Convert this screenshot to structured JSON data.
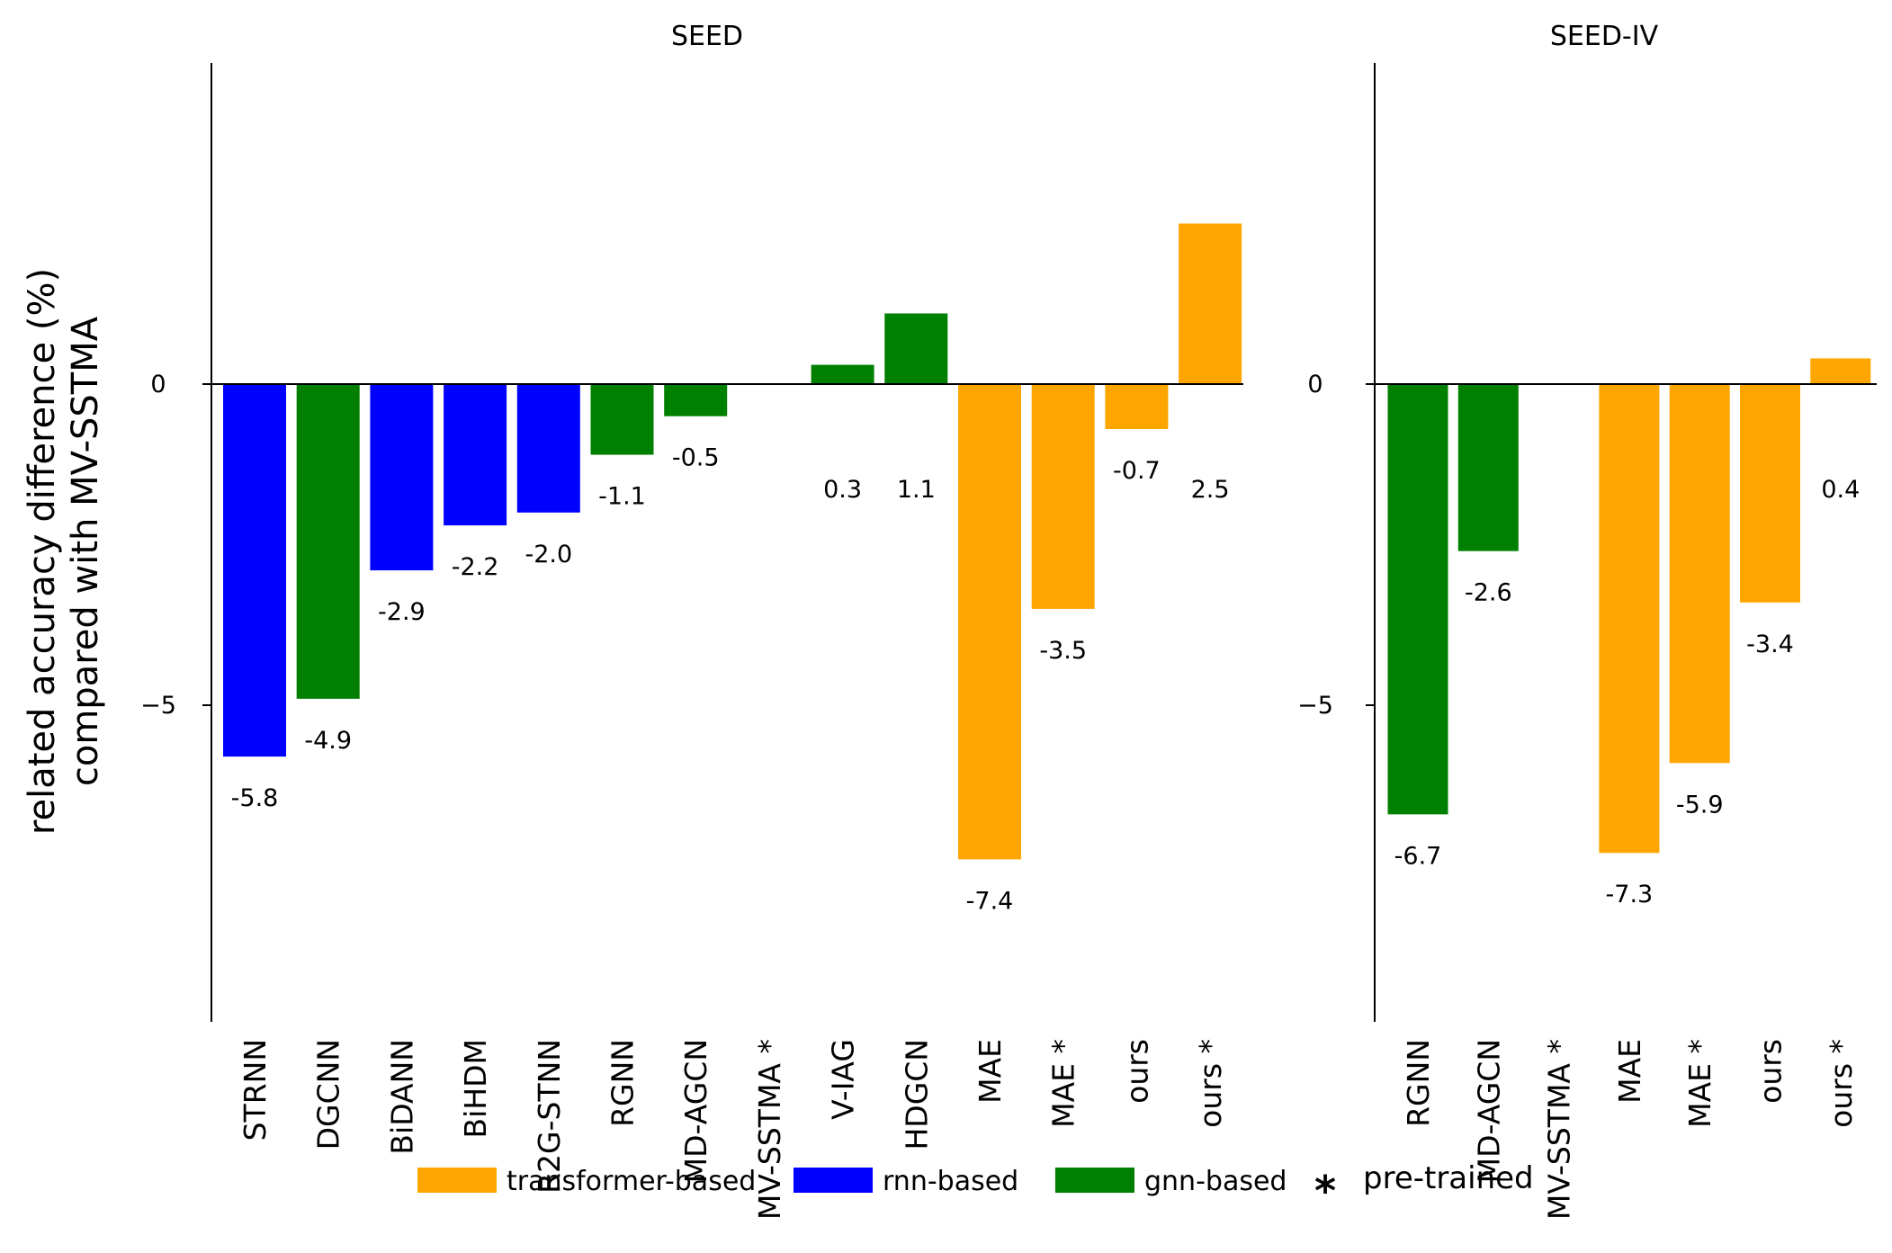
{
  "chart_data": {
    "type": "bar",
    "ylabel": [
      "related accuracy difference (%)",
      "compared with MV-SSTMA"
    ],
    "yticks": [
      0,
      -5
    ],
    "ylim": [
      -10,
      5
    ],
    "colors": {
      "transformer-based": "#FFA500",
      "rnn-based": "#0000FF",
      "gnn-based": "#008000"
    },
    "legend": {
      "placement": "bottom",
      "entries": [
        {
          "label": "transformer-based",
          "group": "transformer-based"
        },
        {
          "label": "rnn-based",
          "group": "rnn-based"
        },
        {
          "label": "gnn-based",
          "group": "gnn-based"
        }
      ],
      "star_symbol": "*",
      "star_label": "pre-trained"
    },
    "panels": [
      {
        "title": "SEED",
        "categories": [
          "STRNN",
          "DGCNN",
          "BiDANN",
          "BiHDM",
          "R2G-STNN",
          "RGNN",
          "MD-AGCN",
          "MV-SSTMA *",
          "V-IAG",
          "HDGCN",
          "MAE",
          "MAE *",
          "ours",
          "ours *"
        ],
        "values": [
          -5.8,
          -4.9,
          -2.9,
          -2.2,
          -2.0,
          -1.1,
          -0.5,
          0,
          0.3,
          1.1,
          -7.4,
          -3.5,
          -0.7,
          2.5
        ],
        "value_labels": [
          "-5.8",
          "-4.9",
          "-2.9",
          "-2.2",
          "-2.0",
          "-1.1",
          "-0.5",
          "",
          "0.3",
          "1.1",
          "-7.4",
          "-3.5",
          "-0.7",
          "2.5"
        ],
        "groups": [
          "rnn-based",
          "gnn-based",
          "rnn-based",
          "rnn-based",
          "rnn-based",
          "gnn-based",
          "gnn-based",
          "transformer-based",
          "gnn-based",
          "gnn-based",
          "transformer-based",
          "transformer-based",
          "transformer-based",
          "transformer-based"
        ]
      },
      {
        "title": "SEED-IV",
        "categories": [
          "RGNN",
          "MD-AGCN",
          "MV-SSTMA *",
          "MAE",
          "MAE *",
          "ours",
          "ours *"
        ],
        "values": [
          -6.7,
          -2.6,
          0,
          -7.3,
          -5.9,
          -3.4,
          0.4
        ],
        "value_labels": [
          "-6.7",
          "-2.6",
          "",
          "-7.3",
          "-5.9",
          "-3.4",
          "0.4"
        ],
        "groups": [
          "gnn-based",
          "gnn-based",
          "transformer-based",
          "transformer-based",
          "transformer-based",
          "transformer-based",
          "transformer-based"
        ]
      }
    ]
  }
}
